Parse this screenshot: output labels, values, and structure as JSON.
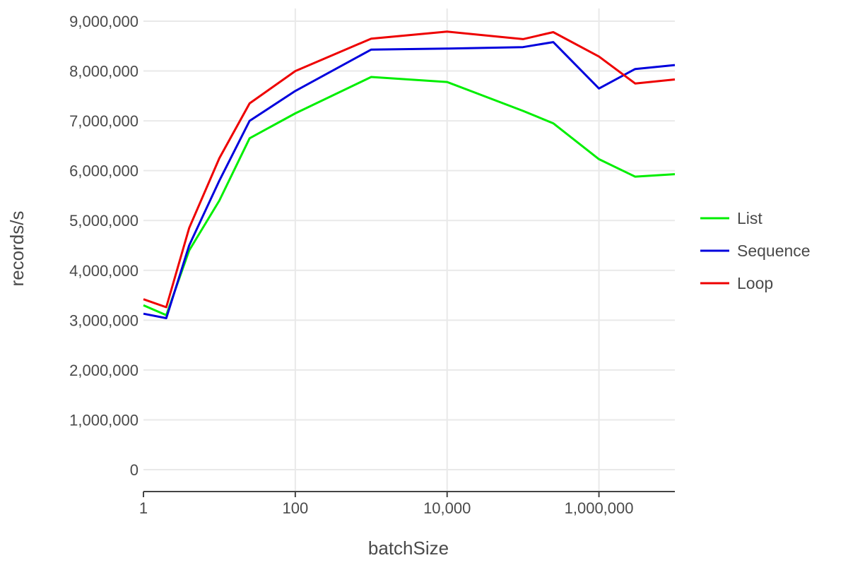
{
  "chart_data": {
    "type": "line",
    "x_scale": "log10",
    "xlabel": "batchSize",
    "ylabel": "records/s",
    "xlim": [
      1,
      10000000
    ],
    "ylim": [
      0,
      9000000
    ],
    "x_ticks": [
      1,
      100,
      10000,
      1000000
    ],
    "x_tick_labels": [
      "1",
      "100",
      "10,000",
      "1,000,000"
    ],
    "y_ticks": [
      0,
      1000000,
      2000000,
      3000000,
      4000000,
      5000000,
      6000000,
      7000000,
      8000000,
      9000000
    ],
    "y_tick_labels": [
      "0",
      "1,000,000",
      "2,000,000",
      "3,000,000",
      "4,000,000",
      "5,000,000",
      "6,000,000",
      "7,000,000",
      "8,000,000",
      "9,000,000"
    ],
    "grid": true,
    "legend_position": "right",
    "x": [
      1,
      2,
      4,
      10,
      25,
      100,
      1000,
      10000,
      100000,
      250000,
      1000000,
      3000000,
      10000000
    ],
    "series": [
      {
        "name": "List",
        "color": "#00ee00",
        "values": [
          3300000,
          3100000,
          4400000,
          5400000,
          6650000,
          7150000,
          7880000,
          7780000,
          7200000,
          6950000,
          6230000,
          5880000,
          5930000
        ]
      },
      {
        "name": "Sequence",
        "color": "#0000dd",
        "values": [
          3130000,
          3040000,
          4500000,
          5800000,
          7000000,
          7600000,
          8430000,
          8450000,
          8480000,
          8580000,
          7650000,
          8040000,
          8120000
        ]
      },
      {
        "name": "Loop",
        "color": "#ee0000",
        "values": [
          3420000,
          3260000,
          4850000,
          6250000,
          7350000,
          8000000,
          8650000,
          8790000,
          8640000,
          8780000,
          8290000,
          7750000,
          7830000
        ]
      }
    ]
  }
}
